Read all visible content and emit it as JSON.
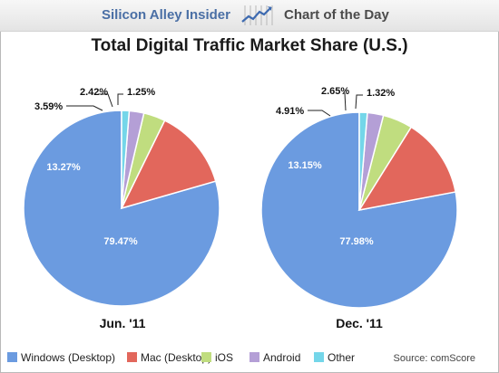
{
  "header": {
    "brand": "Silicon Alley Insider",
    "logo_icon": "line-chart-icon",
    "tagline": "Chart of the Day"
  },
  "source": "Source: comScore",
  "chart_data": {
    "type": "pie",
    "title": "Total Digital Traffic Market Share (U.S.)",
    "categories": [
      "Windows (Desktop)",
      "Mac (Desktop)",
      "iOS",
      "Android",
      "Other"
    ],
    "colors": [
      "#6b9be0",
      "#e2675c",
      "#c0dd7f",
      "#b49fd6",
      "#74d6e9"
    ],
    "pies": [
      {
        "label": "Jun. '11",
        "values": [
          79.47,
          13.27,
          3.59,
          2.42,
          1.25
        ],
        "value_labels": [
          "79.47%",
          "13.27%",
          "3.59%",
          "2.42%",
          "1.25%"
        ]
      },
      {
        "label": "Dec. '11",
        "values": [
          77.98,
          13.15,
          4.91,
          2.65,
          1.32
        ],
        "value_labels": [
          "77.98%",
          "13.15%",
          "4.91%",
          "2.65%",
          "1.32%"
        ]
      }
    ],
    "legend_position": "bottom"
  }
}
